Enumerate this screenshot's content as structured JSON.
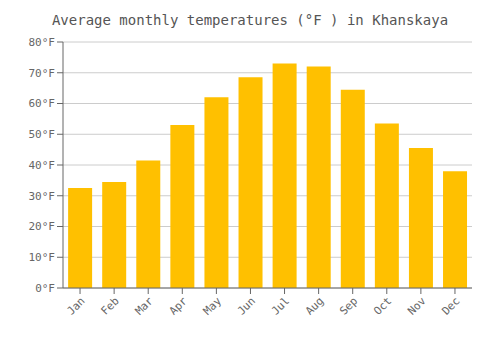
{
  "chart_data": {
    "type": "bar",
    "title": "Average monthly temperatures (°F ) in Khanskaya",
    "categories": [
      "Jan",
      "Feb",
      "Mar",
      "Apr",
      "May",
      "Jun",
      "Jul",
      "Aug",
      "Sep",
      "Oct",
      "Nov",
      "Dec"
    ],
    "values": [
      32.5,
      34.5,
      41.5,
      53.0,
      62.0,
      68.5,
      73.0,
      72.0,
      64.5,
      53.5,
      45.5,
      38.0
    ],
    "color": "#FFC000",
    "ylim": [
      0,
      80
    ],
    "yticks": [
      {
        "value": 0,
        "label": "0°F"
      },
      {
        "value": 10,
        "label": "10°F"
      },
      {
        "value": 20,
        "label": "20°F"
      },
      {
        "value": 30,
        "label": "30°F"
      },
      {
        "value": 40,
        "label": "40°F"
      },
      {
        "value": 50,
        "label": "50°F"
      },
      {
        "value": 60,
        "label": "60°F"
      },
      {
        "value": 70,
        "label": "70°F"
      },
      {
        "value": 80,
        "label": "80°F"
      }
    ],
    "grid": true
  }
}
